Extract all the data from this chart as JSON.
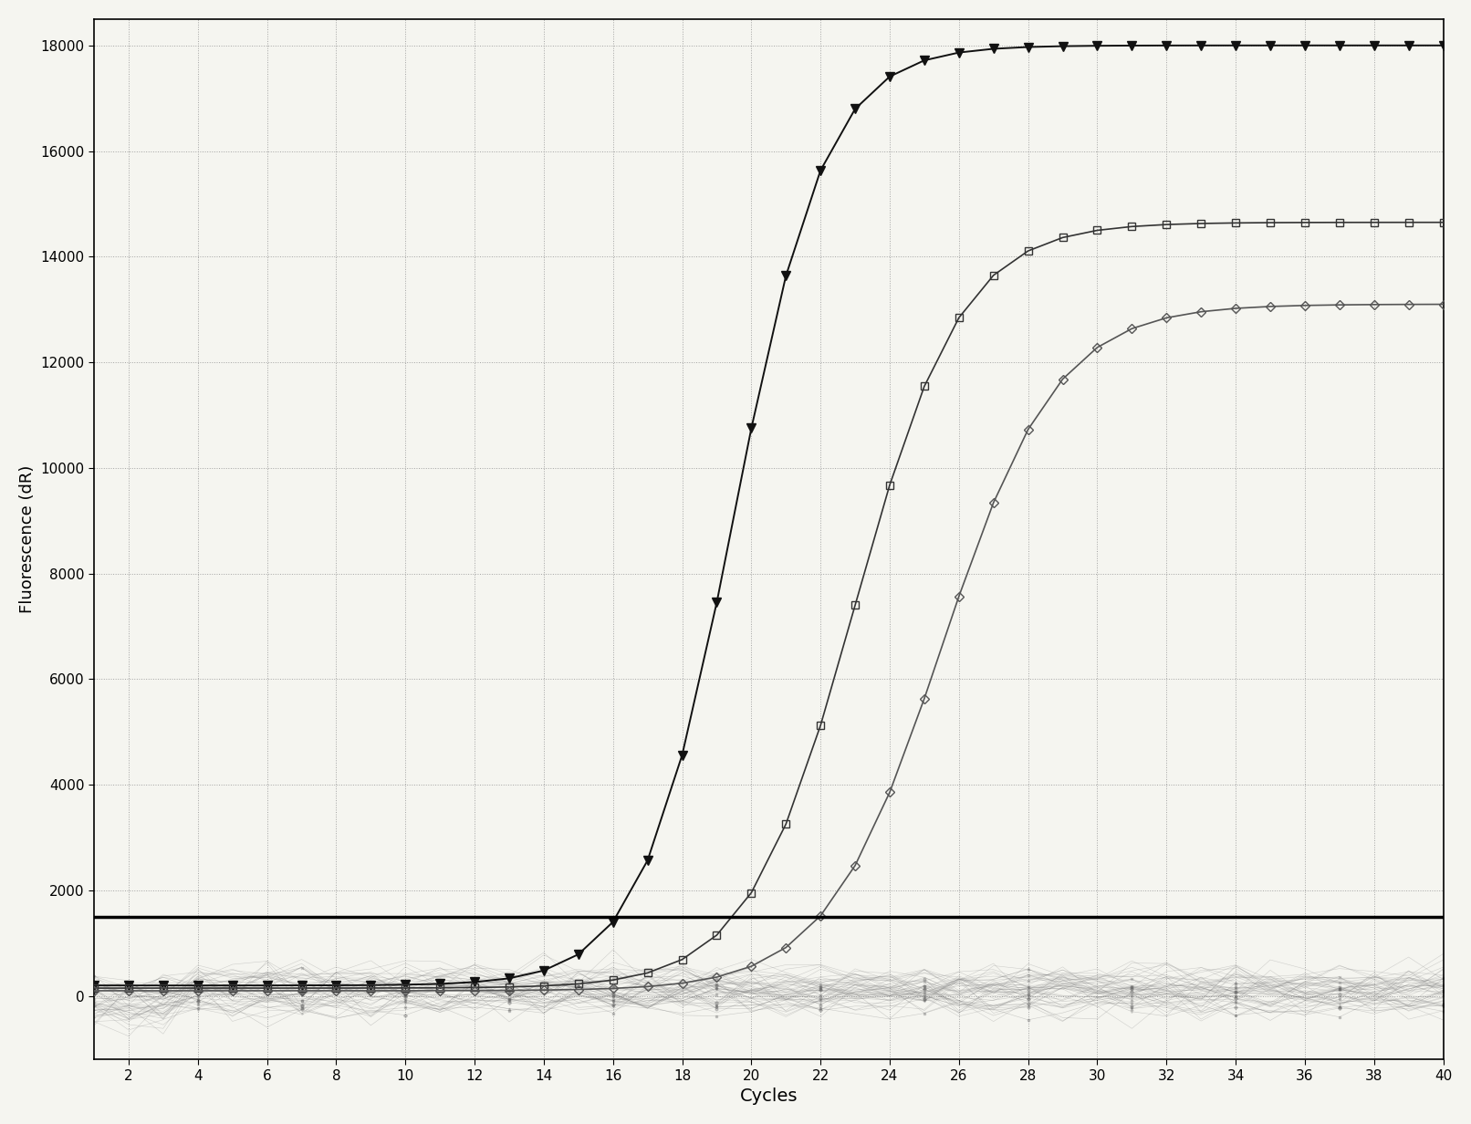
{
  "title": "",
  "xlabel": "Cycles",
  "ylabel": "Fluorescence (dR)",
  "xlim": [
    1,
    40
  ],
  "ylim": [
    -1200,
    18500
  ],
  "xticks": [
    2,
    4,
    6,
    8,
    10,
    12,
    14,
    16,
    18,
    20,
    22,
    24,
    26,
    28,
    30,
    32,
    34,
    36,
    38,
    40
  ],
  "yticks": [
    0,
    2000,
    4000,
    6000,
    8000,
    10000,
    12000,
    14000,
    16000,
    18000
  ],
  "threshold": 1500,
  "background_color": "#f5f5f0",
  "grid_color": "#aaaaaa",
  "axis_color": "#000000",
  "threshold_color": "#000000",
  "noise_series_count": 35,
  "noise_color": "#888888",
  "series1_midpoint": 19.5,
  "series1_k": 0.75,
  "series1_max": 17800,
  "series1_baseline": 200,
  "series2_midpoint": 23.0,
  "series2_k": 0.65,
  "series2_max": 14500,
  "series2_baseline": 150,
  "series3_midpoint": 25.5,
  "series3_k": 0.6,
  "series3_max": 13000,
  "series3_baseline": 100
}
